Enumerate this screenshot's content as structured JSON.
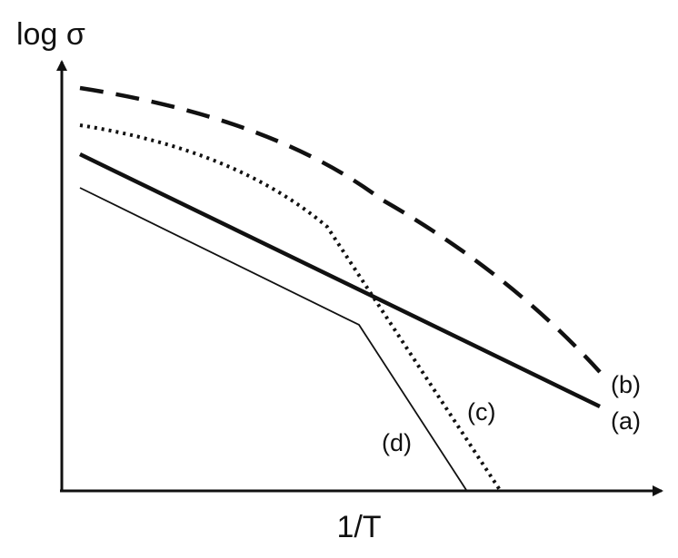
{
  "axes": {
    "y_label": "log σ",
    "x_label": "1/T"
  },
  "curves": [
    {
      "label": "(a)"
    },
    {
      "label": "(b)"
    },
    {
      "label": "(c)"
    },
    {
      "label": "(d)"
    }
  ]
}
